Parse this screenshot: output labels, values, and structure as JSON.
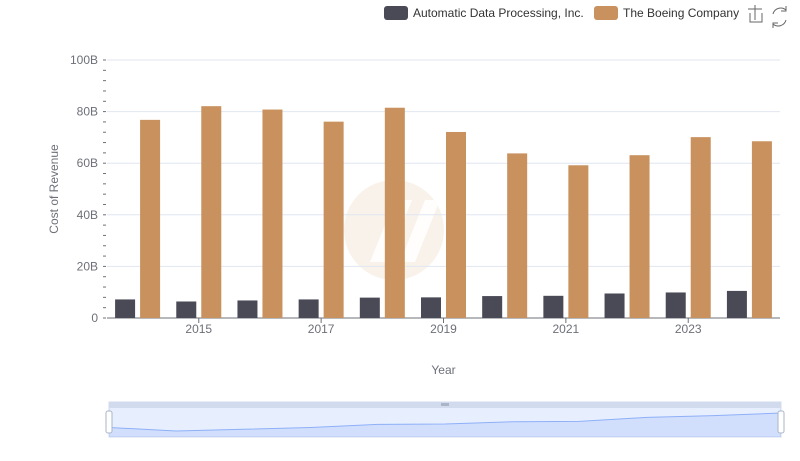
{
  "chart_data": {
    "type": "bar",
    "title": "",
    "xlabel": "Year",
    "ylabel": "Cost of Revenue",
    "categories": [
      "2014",
      "2015",
      "2016",
      "2017",
      "2018",
      "2019",
      "2020",
      "2021",
      "2022",
      "2023",
      "2024"
    ],
    "x_tick_labels": [
      "2015",
      "2017",
      "2019",
      "2021",
      "2023"
    ],
    "y_tick_labels": [
      "0",
      "20B",
      "40B",
      "60B",
      "80B",
      "100B"
    ],
    "ylim": [
      0,
      100
    ],
    "y_unit": "billions",
    "grid": true,
    "legend_position": "top-right",
    "series": [
      {
        "name": "Automatic Data Processing, Inc.",
        "color": "#4a4a57",
        "values": [
          7.2,
          6.4,
          6.8,
          7.2,
          7.9,
          8.0,
          8.5,
          8.6,
          9.5,
          9.9,
          10.5
        ]
      },
      {
        "name": "The Boeing Company",
        "color": "#c8915d",
        "values": [
          76.8,
          82.1,
          80.8,
          76.1,
          81.5,
          72.1,
          63.8,
          59.2,
          63.1,
          70.1,
          68.5
        ]
      }
    ]
  },
  "toolbar": {
    "icons": [
      "zoom-icon",
      "restore-icon"
    ]
  }
}
